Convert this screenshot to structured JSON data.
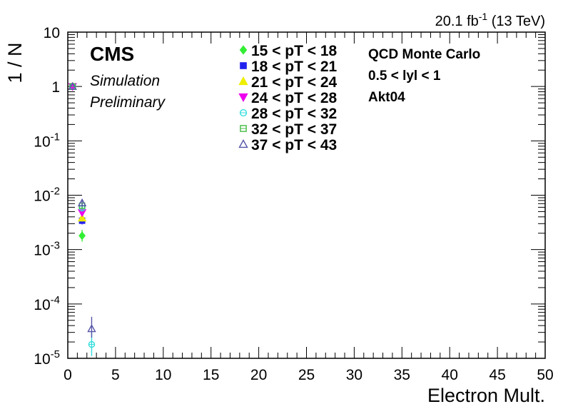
{
  "chart_data": {
    "type": "scatter",
    "ylabel": "1 / N",
    "xlabel": "Electron Mult.",
    "xlim": [
      0,
      50
    ],
    "ylim": [
      1e-05,
      10
    ],
    "yscale": "log",
    "x_ticks": [
      "0",
      "5",
      "10",
      "15",
      "20",
      "25",
      "30",
      "35",
      "40",
      "45",
      "50"
    ],
    "y_ticks": [
      {
        "base": "10",
        "exp": "-5"
      },
      {
        "base": "10",
        "exp": "-4"
      },
      {
        "base": "10",
        "exp": "-3"
      },
      {
        "base": "10",
        "exp": "-2"
      },
      {
        "base": "10",
        "exp": "-1"
      },
      {
        "base": "1",
        "exp": ""
      },
      {
        "base": "10",
        "exp": ""
      }
    ],
    "lumi": {
      "value": "20.1 fb",
      "sup": "-1",
      "energy": " (13 TeV)"
    },
    "cms_label": "CMS",
    "cms_sub1": "Simulation",
    "cms_sub2": "Preliminary",
    "info": [
      "QCD Monte Carlo",
      "0.5 < lyl < 1",
      "Akt04"
    ],
    "legend_placement": "top-center",
    "series": [
      {
        "name": "15 < pT < 18",
        "color": "#33ee33",
        "marker": "diamond",
        "filled": true,
        "points": [
          {
            "x": 0.5,
            "y": 1.0
          },
          {
            "x": 1.5,
            "y": 0.0018,
            "ylo": 0.0014,
            "yhi": 0.0023
          }
        ]
      },
      {
        "name": "18 < pT < 21",
        "color": "#2222ee",
        "marker": "square",
        "filled": true,
        "points": [
          {
            "x": 0.5,
            "y": 1.0
          },
          {
            "x": 1.5,
            "y": 0.0034,
            "ylo": 0.0029,
            "yhi": 0.004
          }
        ]
      },
      {
        "name": "21 < pT < 24",
        "color": "#eeee00",
        "marker": "triangle-up",
        "filled": true,
        "points": [
          {
            "x": 0.5,
            "y": 1.0
          },
          {
            "x": 1.5,
            "y": 0.0038,
            "ylo": 0.0033,
            "yhi": 0.0044
          }
        ]
      },
      {
        "name": "24 < pT < 28",
        "color": "#ee00ee",
        "marker": "triangle-down",
        "filled": true,
        "points": [
          {
            "x": 0.5,
            "y": 1.0
          },
          {
            "x": 1.5,
            "y": 0.0048,
            "ylo": 0.0042,
            "yhi": 0.0055
          }
        ]
      },
      {
        "name": "28 < pT < 32",
        "color": "#33dddd",
        "marker": "circle",
        "filled": false,
        "points": [
          {
            "x": 0.5,
            "y": 1.0
          },
          {
            "x": 1.5,
            "y": 0.0058,
            "ylo": 0.0052,
            "yhi": 0.0065
          },
          {
            "x": 2.5,
            "y": 1.8e-05,
            "ylo": 1.1e-05,
            "yhi": 3e-05
          }
        ]
      },
      {
        "name": "32 < pT < 37",
        "color": "#44bb44",
        "marker": "square",
        "filled": false,
        "points": [
          {
            "x": 0.5,
            "y": 1.0
          },
          {
            "x": 1.5,
            "y": 0.0064,
            "ylo": 0.0058,
            "yhi": 0.0071
          }
        ]
      },
      {
        "name": "37 < pT < 43",
        "color": "#5555aa",
        "marker": "triangle-up",
        "filled": false,
        "points": [
          {
            "x": 0.5,
            "y": 1.0
          },
          {
            "x": 1.5,
            "y": 0.0072,
            "ylo": 0.0065,
            "yhi": 0.008
          },
          {
            "x": 2.5,
            "y": 3.5e-05,
            "ylo": 2.4e-05,
            "yhi": 5.8e-05
          }
        ]
      }
    ]
  }
}
